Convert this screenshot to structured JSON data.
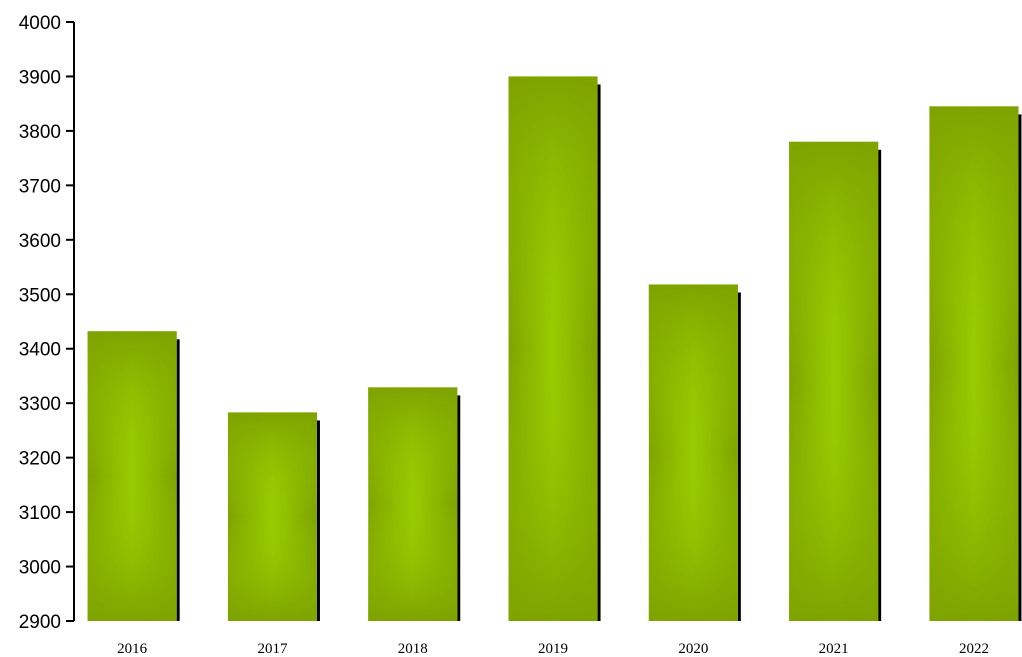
{
  "chart_data": {
    "type": "bar",
    "title": "",
    "xlabel": "",
    "ylabel": "",
    "categories": [
      "2016",
      "2017",
      "2018",
      "2019",
      "2020",
      "2021",
      "2022"
    ],
    "values": [
      3432,
      3283,
      3329,
      3900,
      3518,
      3780,
      3845
    ],
    "ylim": [
      2900,
      4000
    ],
    "yticks": [
      2900,
      3000,
      3100,
      3200,
      3300,
      3400,
      3500,
      3600,
      3700,
      3800,
      3900,
      4000
    ],
    "grid": false,
    "legend": "none",
    "colors": {
      "bar_edge": "#7ea300",
      "bar_center": "#99cc00",
      "bar_shadow": "#000000",
      "axis": "#000000"
    }
  }
}
